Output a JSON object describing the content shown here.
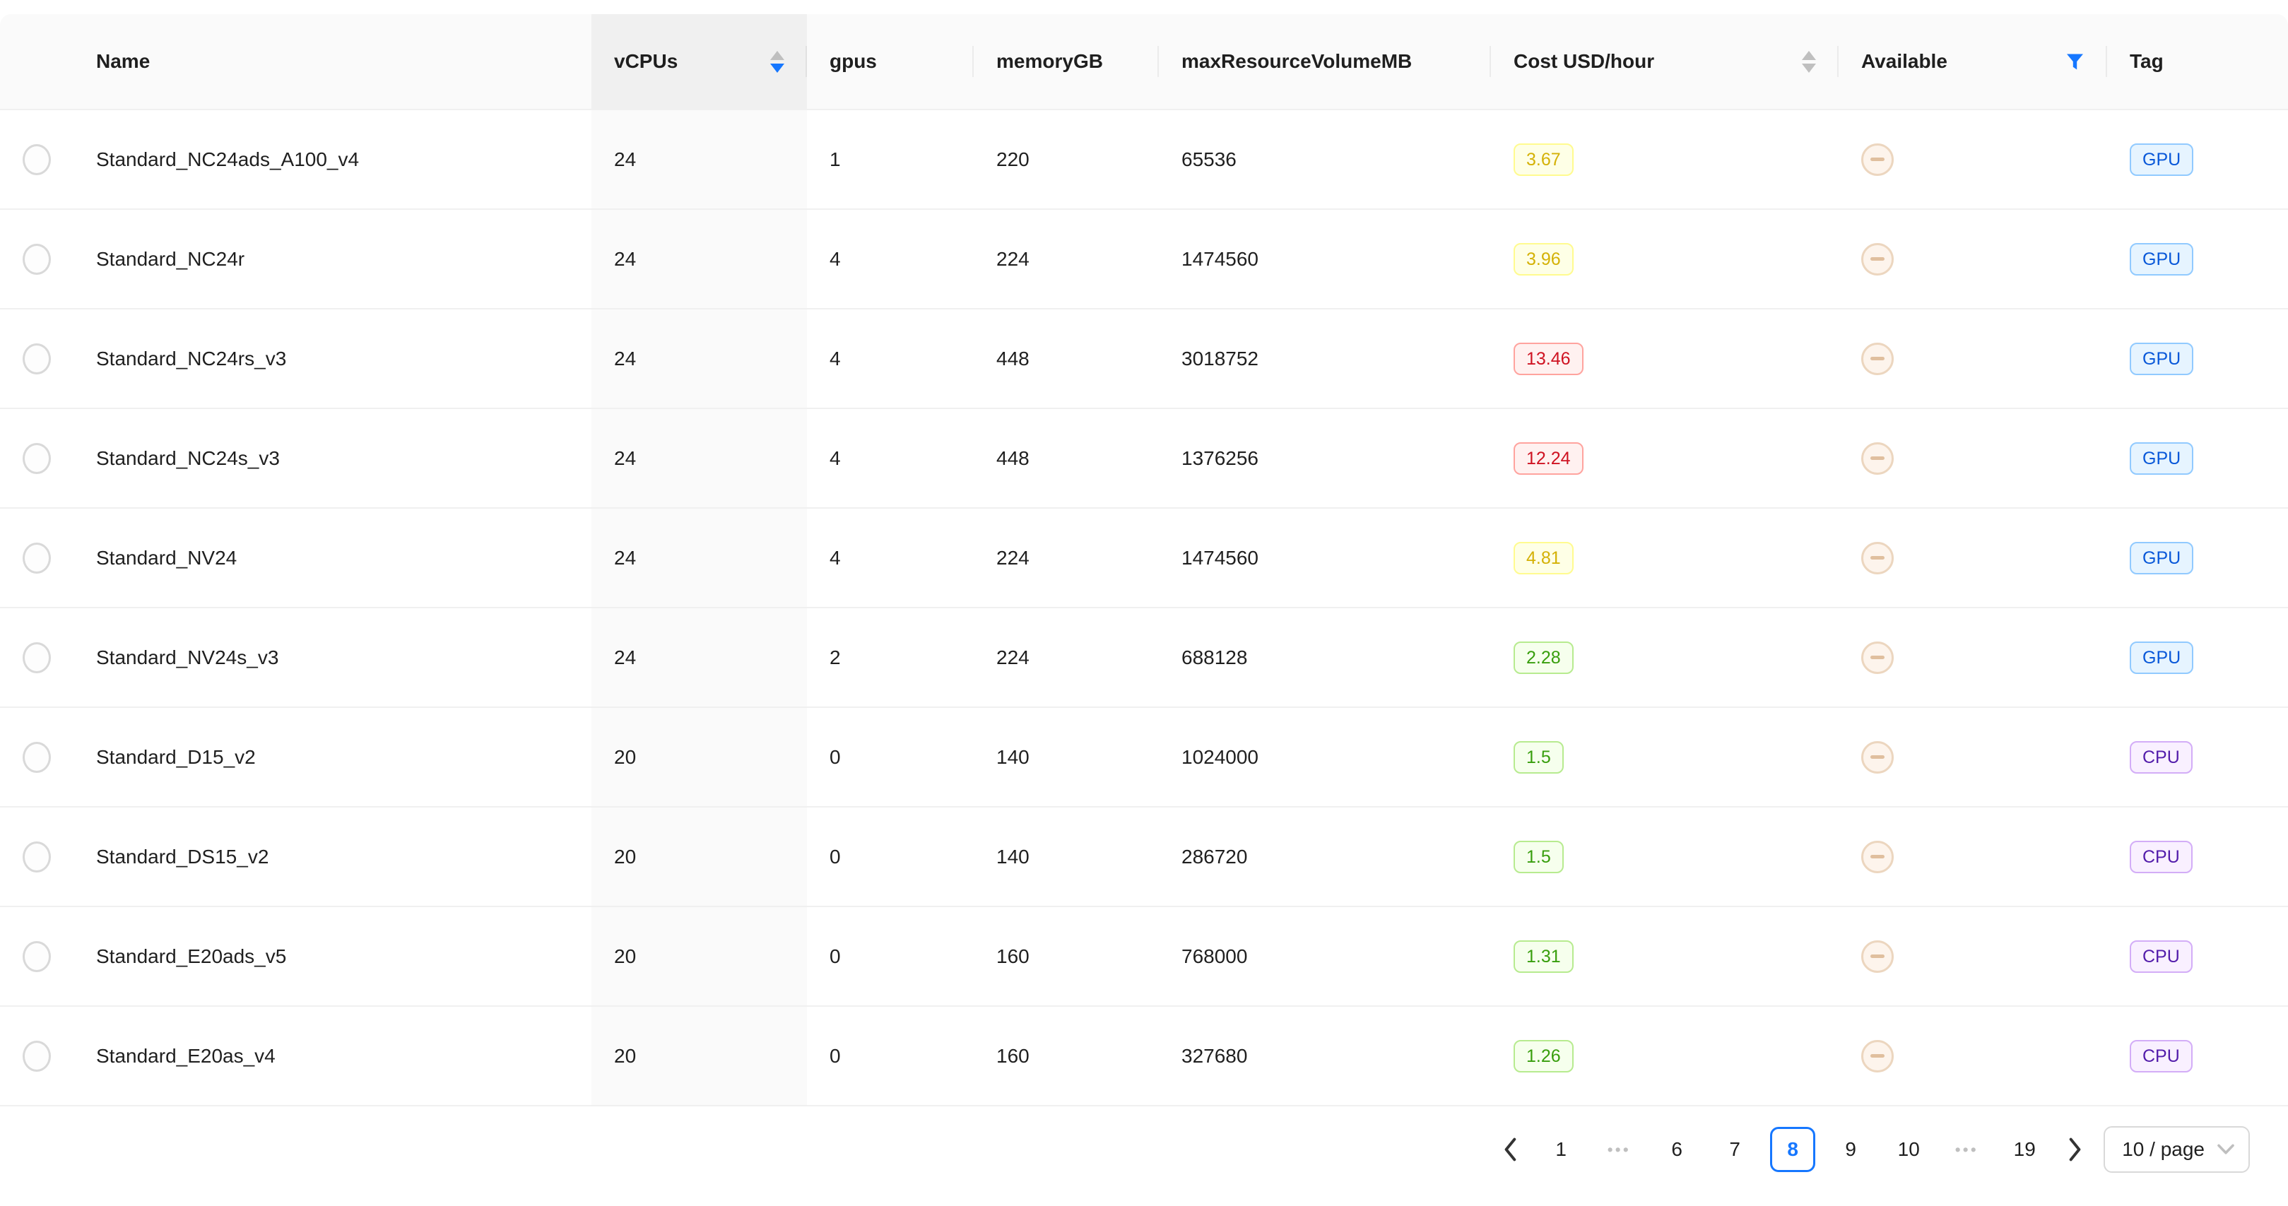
{
  "table": {
    "columns": {
      "name": {
        "label": "Name",
        "sortable": false
      },
      "vcpus": {
        "label": "vCPUs",
        "sortable": true,
        "sort_order": "descend",
        "highlighted": true
      },
      "gpus": {
        "label": "gpus",
        "sortable": false
      },
      "memory": {
        "label": "memoryGB",
        "sortable": false
      },
      "maxres": {
        "label": "maxResourceVolumeMB",
        "sortable": false
      },
      "cost": {
        "label": "Cost USD/hour",
        "sortable": true,
        "sort_order": null
      },
      "avail": {
        "label": "Available",
        "filter": true,
        "filter_active": true
      },
      "tag": {
        "label": "Tag"
      }
    },
    "rows": [
      {
        "name": "Standard_NC24ads_A100_v4",
        "vcpus": "24",
        "gpus": "1",
        "memoryGB": "220",
        "maxResourceVolumeMB": "65536",
        "cost": "3.67",
        "cost_color": "yellow",
        "available": "minus-circle",
        "tag": "GPU",
        "tag_color": "blue"
      },
      {
        "name": "Standard_NC24r",
        "vcpus": "24",
        "gpus": "4",
        "memoryGB": "224",
        "maxResourceVolumeMB": "1474560",
        "cost": "3.96",
        "cost_color": "yellow",
        "available": "minus-circle",
        "tag": "GPU",
        "tag_color": "blue"
      },
      {
        "name": "Standard_NC24rs_v3",
        "vcpus": "24",
        "gpus": "4",
        "memoryGB": "448",
        "maxResourceVolumeMB": "3018752",
        "cost": "13.46",
        "cost_color": "red",
        "available": "minus-circle",
        "tag": "GPU",
        "tag_color": "blue"
      },
      {
        "name": "Standard_NC24s_v3",
        "vcpus": "24",
        "gpus": "4",
        "memoryGB": "448",
        "maxResourceVolumeMB": "1376256",
        "cost": "12.24",
        "cost_color": "red",
        "available": "minus-circle",
        "tag": "GPU",
        "tag_color": "blue"
      },
      {
        "name": "Standard_NV24",
        "vcpus": "24",
        "gpus": "4",
        "memoryGB": "224",
        "maxResourceVolumeMB": "1474560",
        "cost": "4.81",
        "cost_color": "yellow",
        "available": "minus-circle",
        "tag": "GPU",
        "tag_color": "blue"
      },
      {
        "name": "Standard_NV24s_v3",
        "vcpus": "24",
        "gpus": "2",
        "memoryGB": "224",
        "maxResourceVolumeMB": "688128",
        "cost": "2.28",
        "cost_color": "green",
        "available": "minus-circle",
        "tag": "GPU",
        "tag_color": "blue"
      },
      {
        "name": "Standard_D15_v2",
        "vcpus": "20",
        "gpus": "0",
        "memoryGB": "140",
        "maxResourceVolumeMB": "1024000",
        "cost": "1.5",
        "cost_color": "green",
        "available": "minus-circle",
        "tag": "CPU",
        "tag_color": "purple"
      },
      {
        "name": "Standard_DS15_v2",
        "vcpus": "20",
        "gpus": "0",
        "memoryGB": "140",
        "maxResourceVolumeMB": "286720",
        "cost": "1.5",
        "cost_color": "green",
        "available": "minus-circle",
        "tag": "CPU",
        "tag_color": "purple"
      },
      {
        "name": "Standard_E20ads_v5",
        "vcpus": "20",
        "gpus": "0",
        "memoryGB": "160",
        "maxResourceVolumeMB": "768000",
        "cost": "1.31",
        "cost_color": "green",
        "available": "minus-circle",
        "tag": "CPU",
        "tag_color": "purple"
      },
      {
        "name": "Standard_E20as_v4",
        "vcpus": "20",
        "gpus": "0",
        "memoryGB": "160",
        "maxResourceVolumeMB": "327680",
        "cost": "1.26",
        "cost_color": "green",
        "available": "minus-circle",
        "tag": "CPU",
        "tag_color": "purple"
      }
    ]
  },
  "pagination": {
    "items": [
      {
        "label": "1",
        "type": "page",
        "active": false
      },
      {
        "label": "•••",
        "type": "ellipsis",
        "active": false
      },
      {
        "label": "6",
        "type": "page",
        "active": false
      },
      {
        "label": "7",
        "type": "page",
        "active": false
      },
      {
        "label": "8",
        "type": "page",
        "active": true
      },
      {
        "label": "9",
        "type": "page",
        "active": false
      },
      {
        "label": "10",
        "type": "page",
        "active": false
      },
      {
        "label": "•••",
        "type": "ellipsis",
        "active": false
      },
      {
        "label": "19",
        "type": "page",
        "active": false
      }
    ],
    "current_page": "8",
    "page_size": "10 / page"
  },
  "icons": {
    "vcpus_sorter": "caret-up-down",
    "cost_sorter": "caret-up-down",
    "available_filter": "funnel",
    "available_status": "minus-circle",
    "prev": "chevron-left",
    "next": "chevron-right",
    "page_size_arrow": "chevron-down"
  },
  "theme": {
    "accent": "#1677ff",
    "header_bg": "#fafafa",
    "sorted_header_bg": "#f0f0f0",
    "sorted_cell_bg": "#fafafa",
    "row_border": "#f0f0f0",
    "caret_inactive": "#bfbfbf",
    "radio_border": "#d9d9d9",
    "minus_circle_border": "#ecd6bf",
    "minus_circle_bar": "#e0bf9e",
    "tag_yellow": {
      "bg": "#feffe6",
      "border": "#fffb8f",
      "text": "#d4b106"
    },
    "tag_red": {
      "bg": "#fff1f0",
      "border": "#ffa39e",
      "text": "#cf1322"
    },
    "tag_green": {
      "bg": "#f6ffed",
      "border": "#b7eb8f",
      "text": "#389e0d"
    },
    "tag_blue": {
      "bg": "#e6f4ff",
      "border": "#91caff",
      "text": "#0958d9"
    },
    "tag_purple": {
      "bg": "#f9f0ff",
      "border": "#d3adf7",
      "text": "#531dab"
    }
  }
}
